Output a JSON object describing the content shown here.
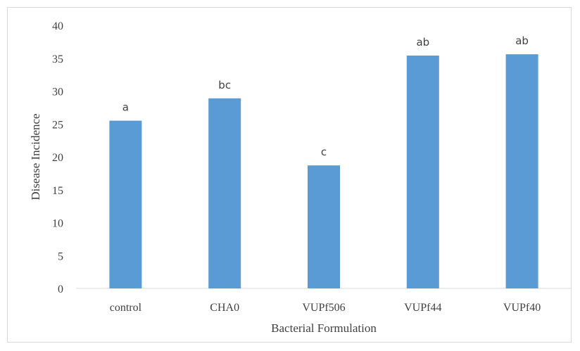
{
  "chart_data": {
    "type": "bar",
    "categories": [
      "control",
      "CHA0",
      "VUPf506",
      "VUPf44",
      "VUPf40"
    ],
    "values": [
      25.5,
      28.9,
      18.7,
      35.4,
      35.6
    ],
    "data_labels": [
      "a",
      "bc",
      "c",
      "ab",
      "ab"
    ],
    "xlabel": "Bacterial Formulation",
    "ylabel": "Disease Incidence",
    "ylim": [
      0,
      40
    ],
    "yticks": [
      0,
      5,
      10,
      15,
      20,
      25,
      30,
      35,
      40
    ],
    "grid": false,
    "legend": "none",
    "bar_color": "#5b9bd5"
  }
}
